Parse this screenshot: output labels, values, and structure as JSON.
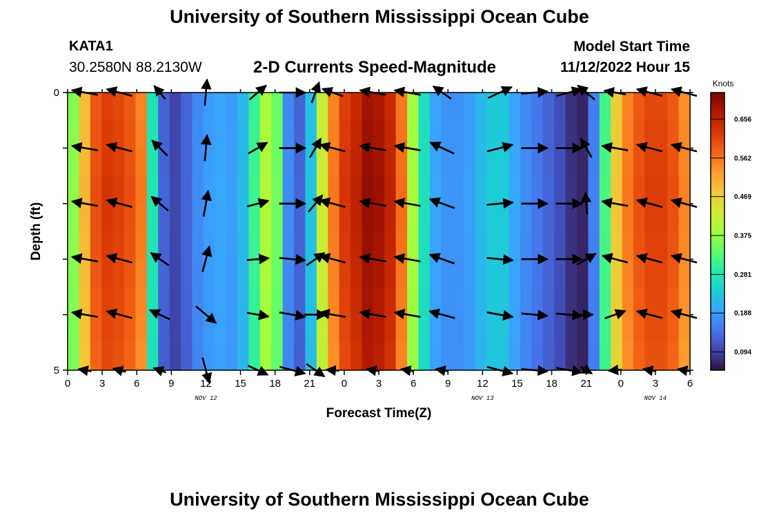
{
  "header": {
    "title": "University of Southern Mississippi Ocean Cube",
    "station": "KATA1",
    "coords": "30.2580N  88.2130W",
    "plot_title": "2-D Currents Speed-Magnitude",
    "model_start_label": "Model Start Time",
    "model_start_value": "11/12/2022 Hour 15"
  },
  "footer": {
    "title": "University of Southern Mississippi Ocean Cube"
  },
  "chart_data": {
    "type": "heatmap",
    "title": "2-D Currents Speed-Magnitude",
    "xlabel": "Forecast Time(Z)",
    "ylabel": "Depth (ft)",
    "x_hours": [
      0,
      1,
      2,
      3,
      4,
      5,
      6,
      7,
      8,
      9,
      10,
      11,
      12,
      13,
      14,
      15,
      16,
      17,
      18,
      19,
      20,
      21,
      22,
      23,
      24,
      25,
      26,
      27,
      28,
      29,
      30,
      31,
      32,
      33,
      34,
      35,
      36,
      37,
      38,
      39,
      40,
      41,
      42,
      43,
      44,
      45,
      46,
      47,
      48,
      49,
      50,
      51,
      52,
      53,
      54
    ],
    "x_tick_labels": [
      "0",
      "3",
      "6",
      "9",
      "12",
      "15",
      "18",
      "21",
      "0",
      "3",
      "6",
      "9",
      "12",
      "15",
      "18",
      "21",
      "0",
      "3",
      "6"
    ],
    "x_tick_hours": [
      0,
      3,
      6,
      9,
      12,
      15,
      18,
      21,
      24,
      27,
      30,
      33,
      36,
      39,
      42,
      45,
      48,
      51,
      54
    ],
    "date_labels": [
      {
        "text": "NOV 12",
        "hour": 12
      },
      {
        "text": "NOV 13",
        "hour": 36
      },
      {
        "text": "NOV 14",
        "hour": 51
      }
    ],
    "y_tick_labels": [
      "0",
      "5"
    ],
    "ylim": [
      0,
      5
    ],
    "depths": [
      0,
      1,
      2,
      3,
      4,
      5
    ],
    "speed_profile_knots": [
      0.37,
      0.5,
      0.6,
      0.63,
      0.62,
      0.6,
      0.56,
      0.28,
      0.13,
      0.1,
      0.13,
      0.17,
      0.19,
      0.2,
      0.19,
      0.22,
      0.31,
      0.4,
      0.35,
      0.17,
      0.13,
      0.23,
      0.43,
      0.56,
      0.63,
      0.66,
      0.7,
      0.69,
      0.66,
      0.57,
      0.39,
      0.27,
      0.2,
      0.18,
      0.18,
      0.19,
      0.22,
      0.24,
      0.24,
      0.2,
      0.17,
      0.15,
      0.13,
      0.11,
      0.08,
      0.07,
      0.16,
      0.32,
      0.48,
      0.56,
      0.6,
      0.62,
      0.62,
      0.6,
      0.55
    ],
    "vectors": [
      {
        "hour": 1.5,
        "dirs_deg": [
          190,
          190,
          190,
          190,
          190,
          190
        ],
        "mags": [
          0.6,
          0.6,
          0.6,
          0.6,
          0.6,
          0.3
        ]
      },
      {
        "hour": 4.5,
        "dirs_deg": [
          195,
          195,
          195,
          195,
          195,
          195
        ],
        "mags": [
          0.6,
          0.6,
          0.6,
          0.6,
          0.6,
          0.3
        ]
      },
      {
        "hour": 8,
        "dirs_deg": [
          230,
          225,
          220,
          215,
          205,
          200
        ],
        "mags": [
          0.4,
          0.5,
          0.5,
          0.5,
          0.5,
          0.3
        ]
      },
      {
        "hour": 12,
        "dirs_deg": [
          275,
          275,
          280,
          285,
          40,
          75
        ],
        "mags": [
          0.6,
          0.6,
          0.6,
          0.6,
          0.6,
          0.6
        ]
      },
      {
        "hour": 16.5,
        "dirs_deg": [
          320,
          330,
          345,
          355,
          10,
          25
        ],
        "mags": [
          0.5,
          0.5,
          0.5,
          0.5,
          0.5,
          0.5
        ]
      },
      {
        "hour": 19.5,
        "dirs_deg": [
          0,
          0,
          0,
          5,
          10,
          15
        ],
        "mags": [
          0.6,
          0.6,
          0.6,
          0.6,
          0.6,
          0.6
        ]
      },
      {
        "hour": 21.5,
        "dirs_deg": [
          290,
          300,
          310,
          325,
          0,
          35
        ],
        "mags": [
          0.5,
          0.5,
          0.5,
          0.5,
          0.5,
          0.5
        ]
      },
      {
        "hour": 23,
        "dirs_deg": [
          200,
          195,
          195,
          195,
          190,
          185
        ],
        "mags": [
          0.5,
          0.6,
          0.6,
          0.6,
          0.6,
          0.3
        ]
      },
      {
        "hour": 26.5,
        "dirs_deg": [
          190,
          190,
          190,
          190,
          190,
          190
        ],
        "mags": [
          0.6,
          0.6,
          0.6,
          0.6,
          0.6,
          0.3
        ]
      },
      {
        "hour": 29.5,
        "dirs_deg": [
          190,
          190,
          190,
          190,
          190,
          190
        ],
        "mags": [
          0.6,
          0.6,
          0.6,
          0.6,
          0.6,
          0.3
        ]
      },
      {
        "hour": 32.5,
        "dirs_deg": [
          215,
          205,
          200,
          200,
          195,
          190
        ],
        "mags": [
          0.5,
          0.6,
          0.6,
          0.6,
          0.6,
          0.3
        ]
      },
      {
        "hour": 37.5,
        "dirs_deg": [
          335,
          345,
          355,
          5,
          10,
          15
        ],
        "mags": [
          0.6,
          0.6,
          0.6,
          0.6,
          0.6,
          0.6
        ]
      },
      {
        "hour": 40.5,
        "dirs_deg": [
          355,
          0,
          0,
          0,
          5,
          5
        ],
        "mags": [
          0.6,
          0.6,
          0.6,
          0.6,
          0.6,
          0.6
        ]
      },
      {
        "hour": 43.5,
        "dirs_deg": [
          345,
          0,
          0,
          0,
          5,
          10
        ],
        "mags": [
          0.6,
          0.6,
          0.6,
          0.6,
          0.6,
          0.6
        ]
      },
      {
        "hour": 45,
        "dirs_deg": [
          220,
          240,
          265,
          330,
          0,
          30
        ],
        "mags": [
          0.5,
          0.5,
          0.5,
          0.5,
          0.3,
          0.3
        ]
      },
      {
        "hour": 47.5,
        "dirs_deg": [
          190,
          190,
          190,
          195,
          340,
          175
        ],
        "mags": [
          0.5,
          0.6,
          0.6,
          0.6,
          0.5,
          0.3
        ]
      },
      {
        "hour": 50.5,
        "dirs_deg": [
          195,
          195,
          195,
          195,
          195,
          190
        ],
        "mags": [
          0.6,
          0.6,
          0.6,
          0.6,
          0.6,
          0.3
        ]
      },
      {
        "hour": 53.5,
        "dirs_deg": [
          195,
          195,
          195,
          195,
          195,
          190
        ],
        "mags": [
          0.6,
          0.6,
          0.6,
          0.6,
          0.6,
          0.3
        ]
      }
    ],
    "colorbar": {
      "unit": "Knots",
      "ticks": [
        "0.094",
        "0.188",
        "0.281",
        "0.375",
        "0.469",
        "0.562",
        "0.656"
      ],
      "tick_values": [
        0.094,
        0.188,
        0.281,
        0.375,
        0.469,
        0.562,
        0.656
      ],
      "range": [
        0.05,
        0.72
      ]
    },
    "colors": {
      "ramp": [
        "#30123b",
        "#4145ab",
        "#4675ed",
        "#39a2fc",
        "#1bcfd4",
        "#24eca6",
        "#61fc6c",
        "#a4fc3b",
        "#d1e834",
        "#f3c63a",
        "#fe9b2d",
        "#f36315",
        "#d93806",
        "#b11901",
        "#7a0402"
      ],
      "arrow": "#000000"
    }
  }
}
